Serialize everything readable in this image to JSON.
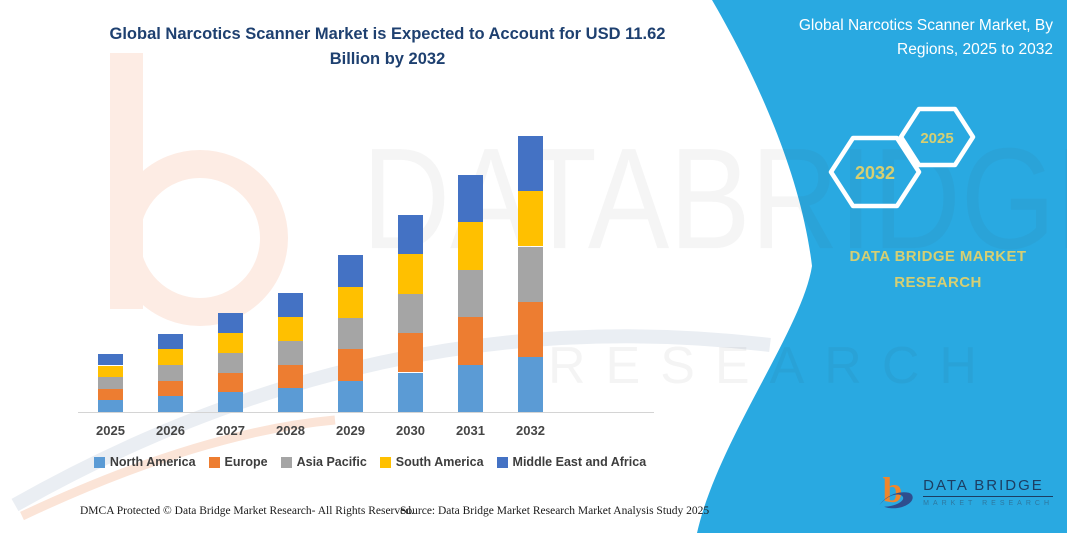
{
  "title": "Global Narcotics Scanner Market is Expected to Account for USD 11.62 Billion by 2032",
  "banner": {
    "heading": "Global Narcotics Scanner Market, By Regions, 2025 to 2032",
    "hex_large_label": "2032",
    "hex_small_label": "2025",
    "brand_text_line1": "DATA BRIDGE MARKET",
    "brand_text_line2": "RESEARCH",
    "background_color": "#29a9e1",
    "accent_text_color": "#d6cf72"
  },
  "logo": {
    "name": "DATA BRIDGE",
    "tagline": "MARKET RESEARCH"
  },
  "footer": {
    "dmca": "DMCA Protected © Data Bridge Market Research-  All Rights Reserved.",
    "source": "Source: Data Bridge Market Research  Market Analysis Study 2025"
  },
  "watermark": {
    "big_text": "DATABRIDGE",
    "row_text": "RESEARCH"
  },
  "chart_data": {
    "type": "bar",
    "stacked": true,
    "unit": "USD Billion",
    "categories": [
      "2025",
      "2026",
      "2027",
      "2028",
      "2029",
      "2030",
      "2031",
      "2032"
    ],
    "series": [
      {
        "name": "North America",
        "color": "#5B9BD5",
        "values": [
          0.49,
          0.66,
          0.83,
          1.0,
          1.32,
          1.66,
          2.0,
          2.32
        ]
      },
      {
        "name": "Europe",
        "color": "#ED7D31",
        "values": [
          0.49,
          0.66,
          0.83,
          1.0,
          1.32,
          1.66,
          2.0,
          2.33
        ]
      },
      {
        "name": "Asia Pacific",
        "color": "#A5A5A5",
        "values": [
          0.49,
          0.66,
          0.83,
          1.0,
          1.32,
          1.66,
          2.0,
          2.32
        ]
      },
      {
        "name": "South America",
        "color": "#FFC000",
        "values": [
          0.49,
          0.66,
          0.83,
          1.0,
          1.32,
          1.66,
          2.0,
          2.33
        ]
      },
      {
        "name": "Middle East and Africa",
        "color": "#4472C4",
        "values": [
          0.49,
          0.66,
          0.83,
          1.0,
          1.32,
          1.66,
          2.0,
          2.32
        ]
      }
    ],
    "totals": [
      2.45,
      3.3,
      4.15,
      5.0,
      6.6,
      8.3,
      10.0,
      11.62
    ],
    "xlabel": "",
    "ylabel": "",
    "ylim": [
      0,
      12
    ],
    "grid": false,
    "legend_position": "bottom"
  }
}
